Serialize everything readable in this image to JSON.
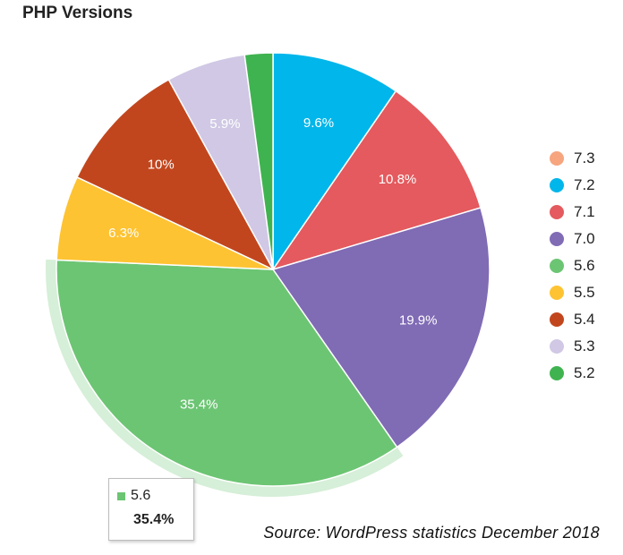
{
  "title": "PHP Versions",
  "source": "Source: WordPress statistics December 2018",
  "tooltip": {
    "label": "5.6",
    "value": "35.4%",
    "color": "#6cc573"
  },
  "chart_data": {
    "type": "pie",
    "title": "PHP Versions",
    "slices": [
      {
        "label": "7.3",
        "value": 0.0,
        "display": "",
        "color": "#f6a57e"
      },
      {
        "label": "7.2",
        "value": 9.6,
        "display": "9.6%",
        "color": "#00b6ea"
      },
      {
        "label": "7.1",
        "value": 10.8,
        "display": "10.8%",
        "color": "#e45a5e"
      },
      {
        "label": "7.0",
        "value": 19.9,
        "display": "19.9%",
        "color": "#806bb5"
      },
      {
        "label": "5.6",
        "value": 35.4,
        "display": "35.4%",
        "color": "#6cc573"
      },
      {
        "label": "5.5",
        "value": 6.3,
        "display": "6.3%",
        "color": "#fec332"
      },
      {
        "label": "5.4",
        "value": 10.0,
        "display": "10%",
        "color": "#c2461d"
      },
      {
        "label": "5.3",
        "value": 5.9,
        "display": "5.9%",
        "color": "#d0c8e4"
      },
      {
        "label": "5.2",
        "value": 2.1,
        "display": "",
        "color": "#3fb34f"
      }
    ],
    "highlighted": "5.6",
    "legend_position": "right"
  }
}
